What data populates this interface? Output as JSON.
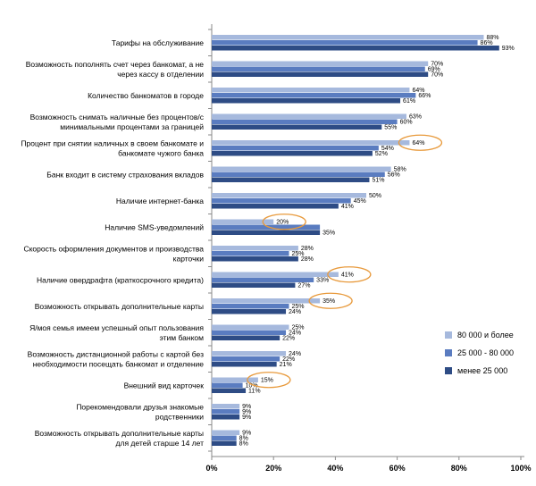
{
  "chart_data": {
    "type": "bar",
    "orientation": "horizontal",
    "categories": [
      "Тарифы на обслуживание",
      "Возможность пополнять счет через банкомат,  а не через кассу в отделении",
      "Количество банкоматов в городе",
      "Возможность снимать наличные без процентов/с минимальными процентами за границей",
      "Процент при снятии наличных в своем банкомате и банкомате чужого банка",
      "Банк входит в систему страхования вкладов",
      "Наличие интернет-банка",
      "Наличие SMS-уведомлений",
      "Скорость оформления документов и производства карточки",
      "Наличие овердрафта (краткосрочного кредита)",
      "Возможность открывать дополнительные карты",
      "Я/моя семья имеем успешный опыт пользования этим банком",
      "Возможность дистанционной работы с картой без необходимости посещать банкомат и отделение",
      "Внешний вид карточек",
      "Порекомендовали друзья  знакомые родственники",
      "Возможность открывать дополнительные карты для детей старше 14 лет"
    ],
    "category_lines": [
      [
        "Тарифы на обслуживание"
      ],
      [
        "Возможность пополнять счет через банкомат,  а не",
        "через кассу в отделении"
      ],
      [
        "Количество банкоматов в городе"
      ],
      [
        "Возможность снимать наличные без процентов/с",
        "минимальными процентами за границей"
      ],
      [
        "Процент при снятии наличных в своем банкомате и",
        "банкомате чужого банка"
      ],
      [
        "Банк входит в систему страхования вкладов"
      ],
      [
        "Наличие интернет-банка"
      ],
      [
        "Наличие SMS-уведомлений"
      ],
      [
        "Скорость оформления документов и производства",
        "карточки"
      ],
      [
        "Наличие овердрафта (краткосрочного кредита)"
      ],
      [
        "Возможность открывать дополнительные карты"
      ],
      [
        "Я/моя семья имеем успешный опыт пользования",
        "этим банком"
      ],
      [
        "Возможность дистанционной работы с картой без",
        "необходимости посещать банкомат и отделение"
      ],
      [
        "Внешний вид карточек"
      ],
      [
        "Порекомендовали друзья  знакомые",
        "родственники"
      ],
      [
        "Возможность открывать дополнительные карты",
        "для детей старше 14 лет"
      ]
    ],
    "series": [
      {
        "name": "80 000 и более",
        "color": "#a6b9dd",
        "values": [
          88,
          70,
          64,
          63,
          64,
          58,
          50,
          20,
          28,
          41,
          35,
          25,
          24,
          15,
          9,
          9
        ]
      },
      {
        "name": "25 000 - 80 000",
        "color": "#5a7cc0",
        "values": [
          86,
          69,
          66,
          60,
          54,
          56,
          45,
          35,
          25,
          33,
          25,
          24,
          22,
          10,
          9,
          8
        ]
      },
      {
        "name": "менее 25 000",
        "color": "#2e4c85",
        "values": [
          93,
          70,
          61,
          55,
          52,
          51,
          41,
          35,
          28,
          27,
          24,
          22,
          21,
          11,
          9,
          8
        ]
      }
    ],
    "value_labels": [
      [
        "88%",
        "86%",
        "93%"
      ],
      [
        "70%",
        "69%",
        "70%"
      ],
      [
        "64%",
        "66%",
        "61%"
      ],
      [
        "63%",
        "60%",
        "55%"
      ],
      [
        "64%",
        "54%",
        "52%"
      ],
      [
        "58%",
        "56%",
        "51%"
      ],
      [
        "50%",
        "45%",
        "41%"
      ],
      [
        "20%",
        "",
        "35%"
      ],
      [
        "28%",
        "25%",
        "28%"
      ],
      [
        "41%",
        "33%",
        "27%"
      ],
      [
        "35%",
        "25%",
        "24%"
      ],
      [
        "25%",
        "24%",
        "22%"
      ],
      [
        "24%",
        "22%",
        "21%"
      ],
      [
        "15%",
        "10%",
        "11%"
      ],
      [
        "9%",
        "9%",
        "9%"
      ],
      [
        "9%",
        "8%",
        "8%"
      ]
    ],
    "highlighted": [
      {
        "category_index": 4,
        "series_index": 0
      },
      {
        "category_index": 7,
        "series_index": 0
      },
      {
        "category_index": 9,
        "series_index": 0
      },
      {
        "category_index": 10,
        "series_index": 0
      },
      {
        "category_index": 13,
        "series_index": 0
      }
    ],
    "highlight_color": "#e89a3c",
    "x_ticks": [
      0,
      20,
      40,
      60,
      80,
      100
    ],
    "x_tick_labels": [
      "0%",
      "20%",
      "40%",
      "60%",
      "80%",
      "100%"
    ],
    "xlim": [
      0,
      100
    ],
    "grid": false,
    "legend_position": "right",
    "title": "",
    "xlabel": "",
    "ylabel": ""
  }
}
